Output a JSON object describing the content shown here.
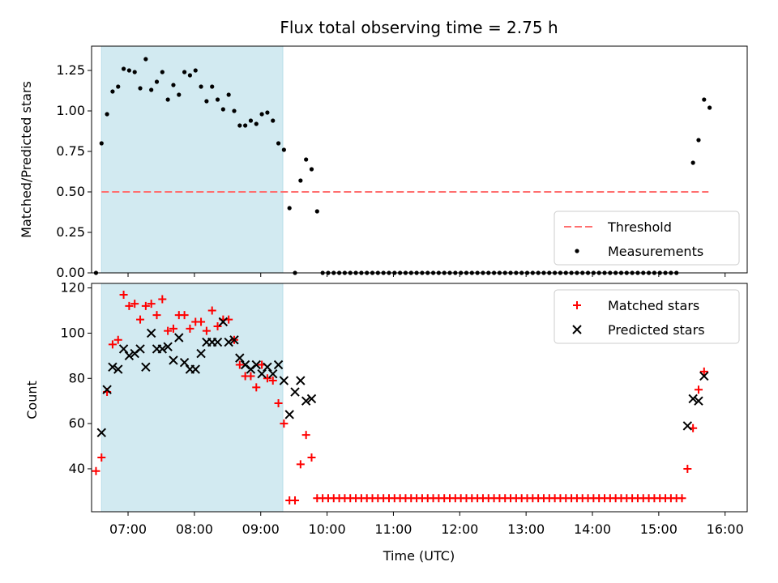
{
  "chart_data": [
    {
      "type": "scatter",
      "title": "Flux total observing time = 2.75 h",
      "xlabel": "",
      "ylabel": "Matched/Predicted stars",
      "xlim": [
        "06:27",
        "16:20"
      ],
      "ylim": [
        0,
        1.4
      ],
      "yticks": [
        "0.00",
        "0.25",
        "0.50",
        "0.75",
        "1.00",
        "1.25"
      ],
      "shaded_span": {
        "start": "06:36",
        "end": "09:20",
        "color": "#add8e6"
      },
      "threshold": {
        "name": "Threshold",
        "value": 0.5,
        "x_start": "06:36",
        "x_end": "15:45",
        "color": "#ff6f6f",
        "style": "dashed"
      },
      "legend": {
        "position": "lower-right",
        "entries": [
          "Threshold",
          "Measurements"
        ]
      },
      "series": [
        {
          "name": "Measurements",
          "color": "#000000",
          "marker": "dot",
          "x": [
            "06:31",
            "06:36",
            "06:41",
            "06:46",
            "06:51",
            "06:56",
            "07:01",
            "07:06",
            "07:11",
            "07:16",
            "07:21",
            "07:26",
            "07:31",
            "07:36",
            "07:41",
            "07:46",
            "07:51",
            "07:56",
            "08:01",
            "08:06",
            "08:11",
            "08:16",
            "08:21",
            "08:26",
            "08:31",
            "08:36",
            "08:41",
            "08:46",
            "08:51",
            "08:56",
            "09:01",
            "09:06",
            "09:11",
            "09:16",
            "09:21",
            "09:26",
            "09:31",
            "09:36",
            "09:41",
            "09:46",
            "09:51"
          ],
          "y": [
            0.0,
            0.8,
            0.98,
            1.12,
            1.15,
            1.26,
            1.25,
            1.24,
            1.14,
            1.32,
            1.13,
            1.18,
            1.24,
            1.07,
            1.16,
            1.1,
            1.24,
            1.22,
            1.25,
            1.15,
            1.06,
            1.15,
            1.07,
            1.01,
            1.1,
            1.0,
            0.91,
            0.91,
            0.94,
            0.92,
            0.98,
            0.99,
            0.94,
            0.8,
            0.76,
            0.4,
            0.0,
            0.57,
            0.7,
            0.64,
            0.38
          ]
        },
        {
          "name": "Measurements (zero)",
          "color": "#000000",
          "marker": "dot",
          "x_start": "09:56",
          "x_end": "15:16",
          "step_minutes": 5,
          "y": 0
        },
        {
          "name": "Measurements (late)",
          "color": "#000000",
          "marker": "dot",
          "x": [
            "15:31",
            "15:36",
            "15:41",
            "15:46"
          ],
          "y": [
            0.68,
            0.82,
            1.07,
            1.02
          ]
        }
      ]
    },
    {
      "type": "scatter",
      "title": "",
      "xlabel": "Time (UTC)",
      "ylabel": "Count",
      "xlim": [
        "06:27",
        "16:20"
      ],
      "ylim": [
        21,
        122
      ],
      "yticks": [
        "40",
        "60",
        "80",
        "100",
        "120"
      ],
      "xticks": [
        "07:00",
        "08:00",
        "09:00",
        "10:00",
        "11:00",
        "12:00",
        "13:00",
        "14:00",
        "15:00",
        "16:00"
      ],
      "shaded_span": {
        "start": "06:36",
        "end": "09:20",
        "color": "#add8e6"
      },
      "legend": {
        "position": "top-right",
        "entries": [
          "Matched stars",
          "Predicted stars"
        ]
      },
      "series": [
        {
          "name": "Matched stars",
          "color": "#ff0000",
          "marker": "plus",
          "x": [
            "06:31",
            "06:36",
            "06:41",
            "06:46",
            "06:51",
            "06:56",
            "07:01",
            "07:06",
            "07:11",
            "07:16",
            "07:21",
            "07:26",
            "07:31",
            "07:36",
            "07:41",
            "07:46",
            "07:51",
            "07:56",
            "08:01",
            "08:06",
            "08:11",
            "08:16",
            "08:21",
            "08:26",
            "08:31",
            "08:36",
            "08:41",
            "08:46",
            "08:51",
            "08:56",
            "09:01",
            "09:06",
            "09:11",
            "09:16",
            "09:21",
            "09:26",
            "09:31",
            "09:36",
            "09:41",
            "09:46",
            "09:51"
          ],
          "y": [
            39,
            45,
            74,
            95,
            97,
            117,
            112,
            113,
            106,
            112,
            113,
            108,
            115,
            101,
            102,
            108,
            108,
            102,
            105,
            105,
            101,
            110,
            103,
            106,
            106,
            97,
            86,
            81,
            81,
            76,
            86,
            80,
            79,
            69,
            60,
            26,
            26,
            42,
            55,
            45,
            27
          ]
        },
        {
          "name": "Matched stars (floor)",
          "color": "#ff0000",
          "marker": "plus",
          "x_start": "09:56",
          "x_end": "15:21",
          "step_minutes": 5,
          "y": 27
        },
        {
          "name": "Matched stars (late)",
          "color": "#ff0000",
          "marker": "plus",
          "x": [
            "15:26",
            "15:31",
            "15:36",
            "15:41"
          ],
          "y": [
            40,
            58,
            75,
            83
          ]
        },
        {
          "name": "Predicted stars",
          "color": "#000000",
          "marker": "x",
          "x": [
            "06:36",
            "06:41",
            "06:46",
            "06:51",
            "06:56",
            "07:01",
            "07:06",
            "07:11",
            "07:16",
            "07:21",
            "07:26",
            "07:31",
            "07:36",
            "07:41",
            "07:46",
            "07:51",
            "07:56",
            "08:01",
            "08:06",
            "08:11",
            "08:16",
            "08:21",
            "08:26",
            "08:31",
            "08:36",
            "08:41",
            "08:46",
            "08:51",
            "08:56",
            "09:01",
            "09:06",
            "09:11",
            "09:16",
            "09:21",
            "09:26",
            "09:31",
            "09:36",
            "09:41",
            "09:46",
            "15:26",
            "15:31",
            "15:36",
            "15:41"
          ],
          "y": [
            56,
            75,
            85,
            84,
            93,
            90,
            91,
            93,
            85,
            100,
            93,
            93,
            94,
            88,
            98,
            87,
            84,
            84,
            91,
            96,
            96,
            96,
            105,
            96,
            97,
            89,
            86,
            84,
            86,
            82,
            85,
            82,
            86,
            79,
            64,
            74,
            79,
            70,
            71,
            59,
            71,
            70,
            81
          ]
        }
      ]
    }
  ]
}
